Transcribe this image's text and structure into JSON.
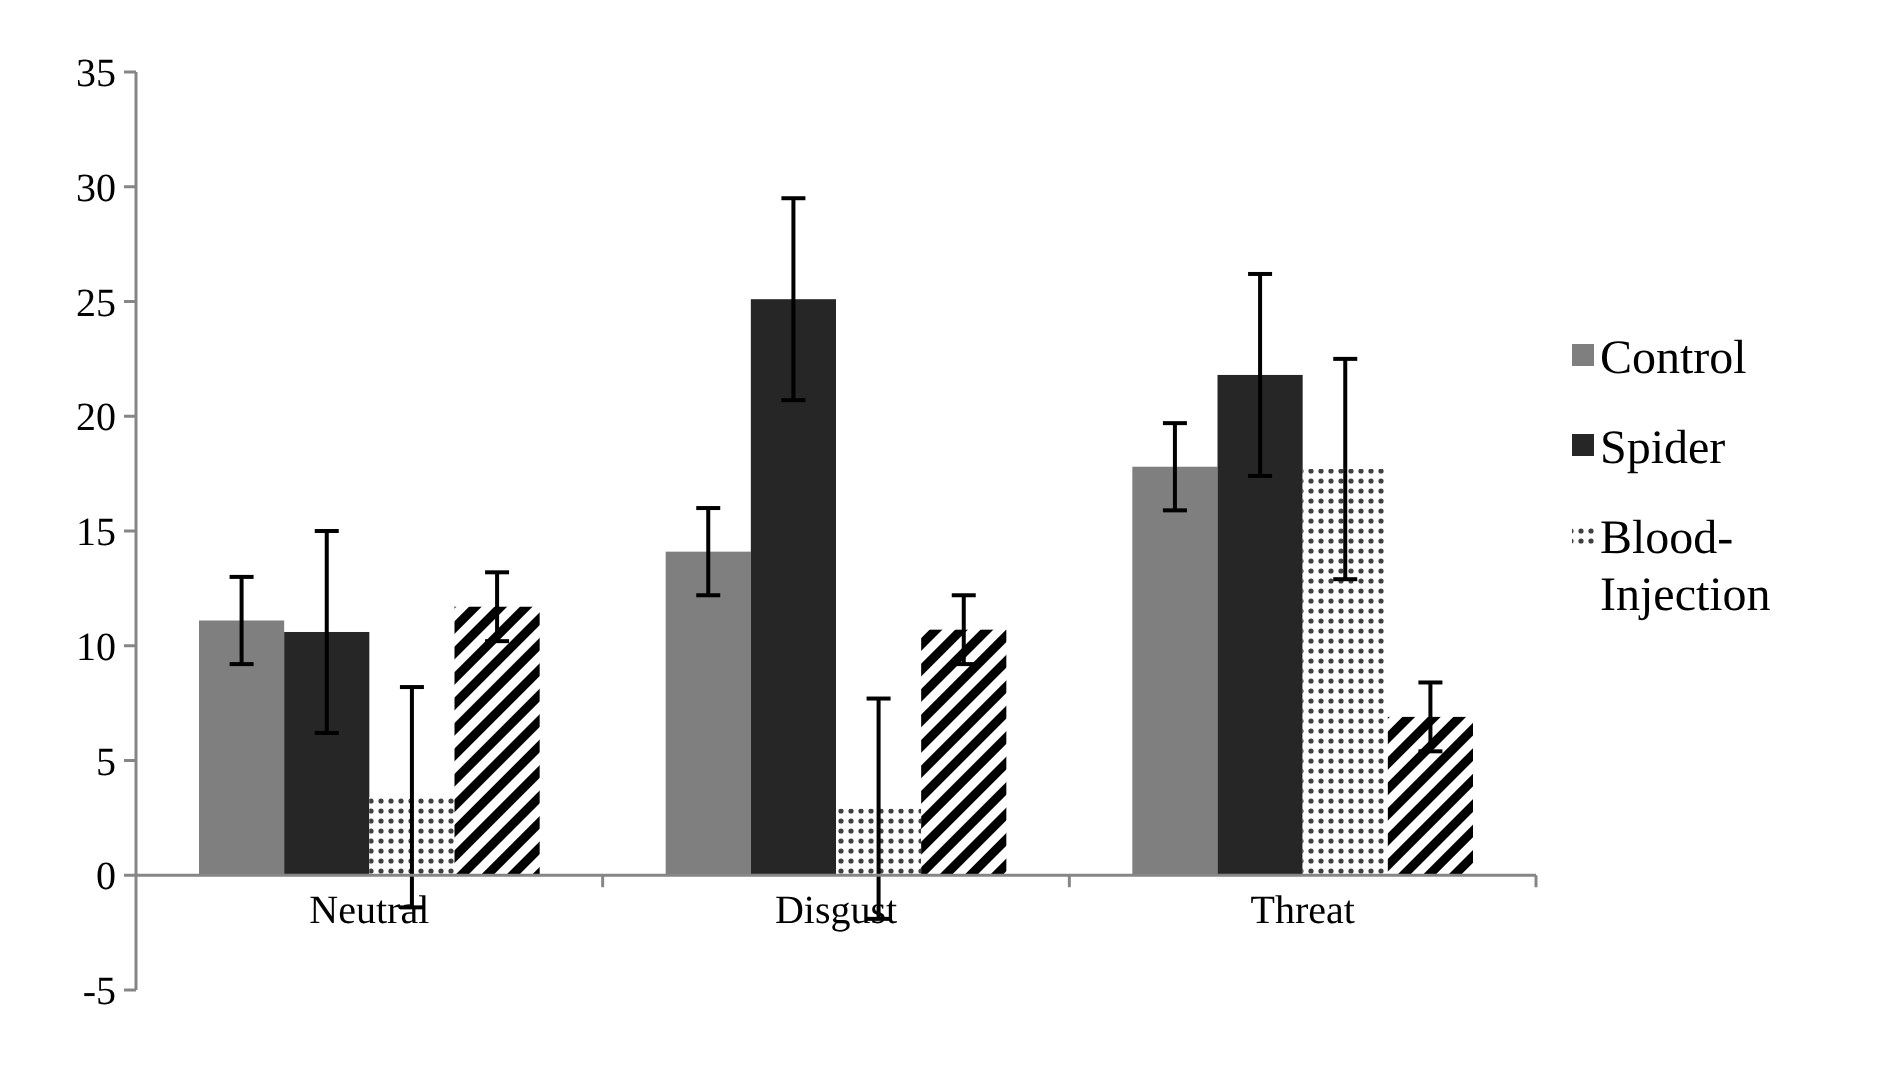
{
  "chart_data": {
    "type": "bar",
    "categories": [
      "Neutral",
      "Disgust",
      "Threat"
    ],
    "series": [
      {
        "name": "Control",
        "color": "#7f7f7f",
        "values": [
          11.1,
          14.1,
          17.8
        ],
        "errors": [
          1.9,
          1.9,
          1.9
        ]
      },
      {
        "name": "Spider",
        "color": "#262626",
        "values": [
          10.6,
          25.1,
          21.8
        ],
        "errors": [
          4.4,
          4.4,
          4.4
        ]
      },
      {
        "name": "Blood-Injection",
        "color": "#404040",
        "values": [
          3.4,
          2.9,
          17.7
        ],
        "errors": [
          4.8,
          4.8,
          4.8
        ]
      },
      {
        "color": "#000000",
        "values": [
          11.7,
          10.7,
          6.9
        ],
        "errors": [
          1.5,
          1.5,
          1.5
        ]
      }
    ],
    "ylim": [
      -5,
      35
    ],
    "yticks": [
      -5,
      0,
      5,
      10,
      15,
      20,
      25,
      30,
      35
    ],
    "grid": false,
    "legend": "right"
  }
}
